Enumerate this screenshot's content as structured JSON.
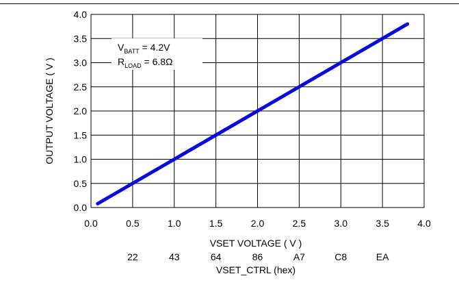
{
  "chart_data": {
    "type": "line",
    "title": "",
    "xlabel": "VSET VOLTAGE ( V )",
    "ylabel": "OUTPUT VOLTAGE ( V )",
    "xlim": [
      0,
      4
    ],
    "ylim": [
      0,
      4
    ],
    "x_ticks": [
      "0.0",
      "0.5",
      "1.0",
      "1.5",
      "2.0",
      "2.5",
      "3.0",
      "3.5",
      "4.0"
    ],
    "y_ticks": [
      "0.0",
      "0.5",
      "1.0",
      "1.5",
      "2.0",
      "2.5",
      "3.0",
      "3.5",
      "4.0"
    ],
    "grid": true,
    "secondary_axis": {
      "label": "VSET_CTRL (hex)",
      "ticks": [
        {
          "x": 0.5,
          "label": "22"
        },
        {
          "x": 1.0,
          "label": "43"
        },
        {
          "x": 1.5,
          "label": "64"
        },
        {
          "x": 2.0,
          "label": "86"
        },
        {
          "x": 2.5,
          "label": "A7"
        },
        {
          "x": 3.0,
          "label": "C8"
        },
        {
          "x": 3.5,
          "label": "EA"
        }
      ]
    },
    "series": [
      {
        "color": "#0a0adc",
        "x": [
          0.08,
          3.8
        ],
        "y": [
          0.08,
          3.8
        ]
      }
    ],
    "annotation": {
      "lines": [
        {
          "main": "V",
          "sub": "BATT",
          "rest": " = 4.2V"
        },
        {
          "main": "R",
          "sub": "LOAD",
          "rest": " = 6.8Ω"
        }
      ]
    }
  }
}
